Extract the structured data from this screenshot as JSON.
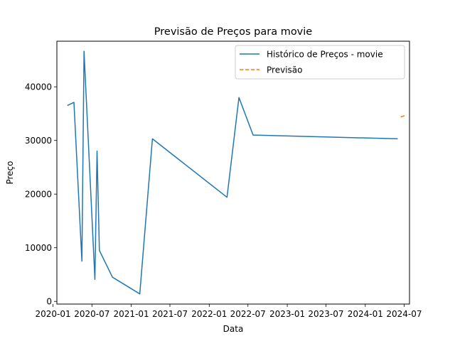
{
  "chart_data": {
    "type": "line",
    "title": "Previsão de Preços para movie",
    "xlabel": "Data",
    "ylabel": "Preço",
    "x_ticks": [
      "2020-01",
      "2020-07",
      "2021-01",
      "2021-07",
      "2022-01",
      "2022-07",
      "2023-01",
      "2023-07",
      "2024-01",
      "2024-07"
    ],
    "y_ticks": [
      0,
      10000,
      20000,
      30000,
      40000
    ],
    "ylim": [
      -500,
      48500
    ],
    "xlim": [
      "2020-01-19",
      "2024-07-26"
    ],
    "grid": false,
    "legend_position": "top-right",
    "series": [
      {
        "name": "Histórico de Preços - movie",
        "color": "#1f77b4",
        "style": "solid",
        "points": [
          {
            "x": "2020-03-08",
            "y": 36500
          },
          {
            "x": "2020-04-08",
            "y": 37100
          },
          {
            "x": "2020-05-15",
            "y": 7500
          },
          {
            "x": "2020-05-25",
            "y": 46600
          },
          {
            "x": "2020-07-15",
            "y": 4100
          },
          {
            "x": "2020-07-25",
            "y": 28000
          },
          {
            "x": "2020-08-05",
            "y": 9500
          },
          {
            "x": "2020-10-05",
            "y": 4500
          },
          {
            "x": "2021-02-10",
            "y": 1400
          },
          {
            "x": "2021-04-10",
            "y": 30300
          },
          {
            "x": "2022-03-25",
            "y": 19400
          },
          {
            "x": "2022-05-20",
            "y": 38000
          },
          {
            "x": "2022-07-25",
            "y": 31000
          },
          {
            "x": "2024-06-01",
            "y": 30300
          }
        ]
      },
      {
        "name": "Previsão",
        "color": "#ff7f0e",
        "style": "dashed",
        "points": [
          {
            "x": "2024-06-15",
            "y": 34400
          },
          {
            "x": "2024-07-10",
            "y": 34700
          }
        ]
      }
    ]
  }
}
